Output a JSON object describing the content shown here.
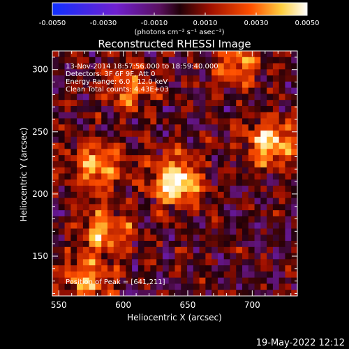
{
  "colorbar": {
    "ticks": [
      "-0.0050",
      "-0.0030",
      "-0.0010",
      "0.0010",
      "0.0030",
      "0.0050"
    ],
    "tick_values": [
      -0.005,
      -0.003,
      -0.001,
      0.001,
      0.003,
      0.005
    ],
    "range": [
      -0.005,
      0.005
    ],
    "units_label": "(photons cm⁻² s⁻¹ asec⁻²)",
    "colors": [
      "#1030ff",
      "#7020d0",
      "#5a1060",
      "#200008",
      "#a01000",
      "#ff5000",
      "#ffd040",
      "#ffffff"
    ]
  },
  "chart_data": {
    "type": "heatmap",
    "title": "Reconstructed RHESSI Image",
    "xlabel": "Heliocentric X (arcsec)",
    "ylabel": "Heliocentric Y (arcsec)",
    "xlim": [
      545,
      735
    ],
    "ylim": [
      118,
      315
    ],
    "xticks": [
      550,
      600,
      650,
      700
    ],
    "yticks": [
      150,
      200,
      250,
      300
    ],
    "annotations": [
      "13-Nov-2014 18:57:56.000 to 18:59:40.000",
      "Detectors: 3F 6F 9F, Att 0",
      "Energy Range: 6.0 - 12.0 keV",
      "Clean     Total counts: 4.43E+03"
    ],
    "peak_label": "Position of Peak = [641,211]",
    "peak": [
      641,
      211
    ],
    "sources": [
      {
        "x": 641,
        "y": 211,
        "peak": 0.005
      },
      {
        "x": 715,
        "y": 240,
        "peak": 0.0042
      },
      {
        "x": 578,
        "y": 222,
        "peak": 0.0035
      },
      {
        "x": 588,
        "y": 170,
        "peak": 0.0033
      },
      {
        "x": 570,
        "y": 130,
        "peak": 0.003
      },
      {
        "x": 690,
        "y": 305,
        "peak": 0.0028
      },
      {
        "x": 605,
        "y": 285,
        "peak": 0.0026
      }
    ]
  },
  "footer": {
    "date": "19-May-2022 12:12"
  }
}
